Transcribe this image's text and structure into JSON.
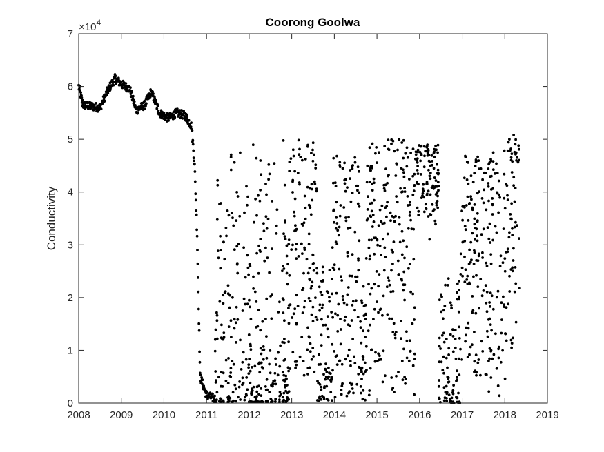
{
  "chart_data": {
    "type": "scatter",
    "title": "Coorong Goolwa",
    "xlabel": "",
    "ylabel": "Conductivity",
    "y_exponent_label": "×10",
    "y_exponent_power": "4",
    "xlim": [
      2008,
      2019
    ],
    "ylim": [
      0,
      70000
    ],
    "x_ticks": [
      "2008",
      "2009",
      "2010",
      "2011",
      "2012",
      "2013",
      "2014",
      "2015",
      "2016",
      "2017",
      "2018",
      "2019"
    ],
    "x_tick_values": [
      2008,
      2009,
      2010,
      2011,
      2012,
      2013,
      2014,
      2015,
      2016,
      2017,
      2018,
      2019
    ],
    "y_ticks": [
      "0",
      "1",
      "2",
      "3",
      "4",
      "5",
      "6",
      "7"
    ],
    "y_tick_values": [
      0,
      10000,
      20000,
      30000,
      40000,
      50000,
      60000,
      70000
    ],
    "grid": false,
    "marker_color": "#000000",
    "trend": [
      {
        "x": 2008.0,
        "y": 60000
      },
      {
        "x": 2008.1,
        "y": 56500
      },
      {
        "x": 2008.5,
        "y": 56000
      },
      {
        "x": 2008.7,
        "y": 59500
      },
      {
        "x": 2008.85,
        "y": 61500
      },
      {
        "x": 2009.0,
        "y": 60500
      },
      {
        "x": 2009.2,
        "y": 59500
      },
      {
        "x": 2009.35,
        "y": 55500
      },
      {
        "x": 2009.55,
        "y": 56500
      },
      {
        "x": 2009.7,
        "y": 59000
      },
      {
        "x": 2009.9,
        "y": 55000
      },
      {
        "x": 2010.1,
        "y": 54000
      },
      {
        "x": 2010.3,
        "y": 55000
      },
      {
        "x": 2010.5,
        "y": 54500
      },
      {
        "x": 2010.65,
        "y": 52500
      },
      {
        "x": 2010.72,
        "y": 45000
      },
      {
        "x": 2010.78,
        "y": 32000
      },
      {
        "x": 2010.85,
        "y": 5000
      },
      {
        "x": 2011.0,
        "y": 1500
      },
      {
        "x": 2011.2,
        "y": 800
      }
    ],
    "bands": [
      {
        "x0": 2011.2,
        "x1": 2013.0,
        "lo": 200,
        "hi": 50000,
        "low_bias": 2.2
      },
      {
        "x0": 2013.0,
        "x1": 2013.6,
        "lo": 5000,
        "hi": 50000,
        "low_bias": 0.8
      },
      {
        "x0": 2013.6,
        "x1": 2013.95,
        "lo": 500,
        "hi": 30000,
        "low_bias": 1.8
      },
      {
        "x0": 2013.95,
        "x1": 2014.6,
        "lo": 1000,
        "hi": 47000,
        "low_bias": 0.9
      },
      {
        "x0": 2014.6,
        "x1": 2014.75,
        "lo": 500,
        "hi": 25000,
        "low_bias": 2.0
      },
      {
        "x0": 2014.75,
        "x1": 2015.9,
        "lo": 1000,
        "hi": 50000,
        "low_bias": 0.8
      },
      {
        "x0": 2015.9,
        "x1": 2016.45,
        "lo": 30000,
        "hi": 49000,
        "low_bias": 0.5
      },
      {
        "x0": 2016.45,
        "x1": 2016.95,
        "lo": 0,
        "hi": 25000,
        "low_bias": 2.5
      },
      {
        "x0": 2016.95,
        "x1": 2017.6,
        "lo": 5000,
        "hi": 47000,
        "low_bias": 0.9
      },
      {
        "x0": 2017.6,
        "x1": 2018.05,
        "lo": 1000,
        "hi": 48000,
        "low_bias": 0.9
      },
      {
        "x0": 2018.05,
        "x1": 2018.35,
        "lo": 5000,
        "hi": 51000,
        "low_bias": 0.6
      }
    ]
  }
}
